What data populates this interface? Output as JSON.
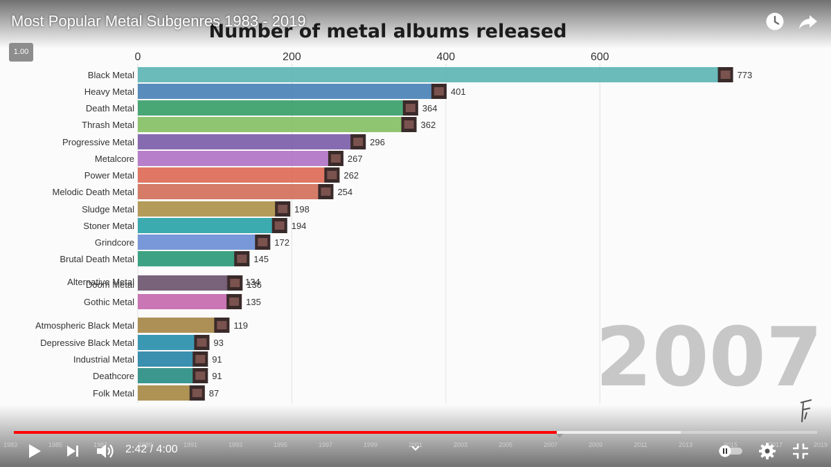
{
  "video": {
    "title": "Most Popular Metal Subgenres 1983 - 2019",
    "speed_label": "1.00",
    "time_current": "2:42",
    "time_separator": " / ",
    "time_total": "4:00",
    "progress_fraction": 0.676,
    "buffered_fraction": 0.83,
    "timeline_years": [
      "1983",
      "1985",
      "1987",
      "1989",
      "1991",
      "1993",
      "1995",
      "1997",
      "1999",
      "2001",
      "2003",
      "2005",
      "2007",
      "2009",
      "2011",
      "2013",
      "2015",
      "2017",
      "2019"
    ],
    "colors": {
      "progress": "#ff0000",
      "controls": "#ffffff"
    },
    "icons": {
      "watch_later": "clock-icon",
      "share": "share-icon",
      "play": "play-icon",
      "next": "next-icon",
      "volume": "volume-icon",
      "chevron": "chevron-down-icon",
      "autoplay": "autoplay-toggle-icon",
      "settings": "gear-icon",
      "fullscreen_exit": "exit-fullscreen-icon"
    }
  },
  "chart_data": {
    "type": "bar",
    "orientation": "horizontal",
    "title": "Number of metal albums released",
    "year_label": "2007",
    "xlim": [
      0,
      800
    ],
    "x_ticks": [
      0,
      200,
      400,
      600
    ],
    "grid": true,
    "categories": [
      "Black Metal",
      "Heavy Metal",
      "Death Metal",
      "Thrash Metal",
      "Progressive Metal",
      "Metalcore",
      "Power Metal",
      "Melodic Death Metal",
      "Sludge Metal",
      "Stoner Metal",
      "Grindcore",
      "Brutal Death Metal",
      "Alternative Metal",
      "Doom Metal",
      "Gothic Metal",
      "Atmospheric Black Metal",
      "Depressive Black Metal",
      "Industrial Metal",
      "Deathcore",
      "Folk Metal"
    ],
    "values": [
      773,
      401,
      364,
      362,
      296,
      267,
      262,
      254,
      198,
      194,
      172,
      145,
      134,
      136,
      135,
      119,
      93,
      91,
      91,
      87
    ],
    "value_labels": [
      "773",
      "401",
      "364",
      "362",
      "296",
      "267",
      "262",
      "254",
      "198",
      "194",
      "172",
      "145",
      "134",
      "136",
      "135",
      "119",
      "93",
      "91",
      "91",
      "87"
    ],
    "colors": [
      "#5eb5b5",
      "#4a82b6",
      "#3aa06a",
      "#86c064",
      "#7d5eaa",
      "#b173c4",
      "#dd6a57",
      "#d1705a",
      "#ae934b",
      "#2aa4a9",
      "#6d8fd6",
      "#2c9a78",
      "#7c6a7a",
      "#77627a",
      "#c669ae",
      "#a68748",
      "#2a8fad",
      "#2a86a8",
      "#2b8e86",
      "#a78a45"
    ]
  }
}
